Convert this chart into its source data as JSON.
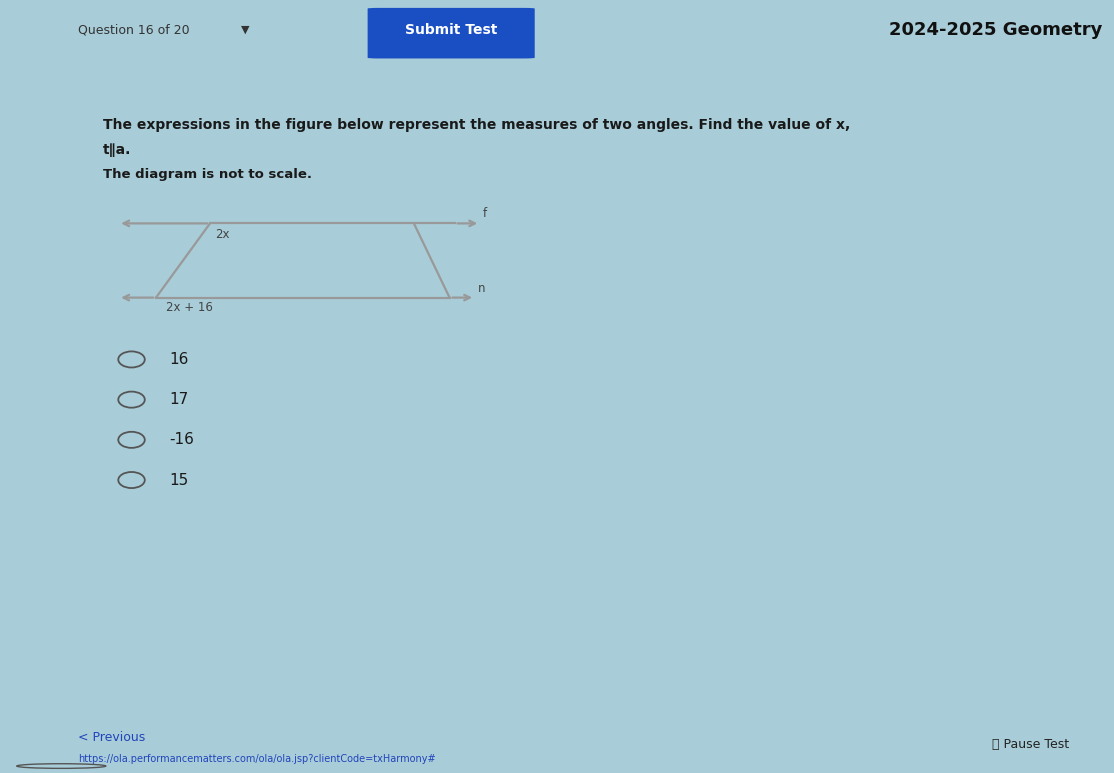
{
  "bg_outer": "#a8cdd8",
  "bg_top_bar": "#d8edf5",
  "bg_content": "#e2eef2",
  "bg_white_box": "#f2f6f8",
  "submit_btn_color": "#1a4fc4",
  "top_right_text": "2024-2025 Geometry",
  "top_nav_text": "Question 16 of 20",
  "question_text": "The expressions in the figure below represent the measures of two angles. Find the value of x,",
  "question_text2": "t∥a.",
  "question_text3": "The diagram is not to scale.",
  "angle1_label": "2x",
  "angle2_label": "2x + 16",
  "label_f": "f",
  "label_n": "n",
  "choices": [
    "16",
    "17",
    "-16",
    "15"
  ],
  "bottom_left_text": "< Previous",
  "bottom_url": "https://ola.performancematters.com/ola/ola.jsp?clientCode=txHarmony#",
  "bottom_right_text": "ⓘ Pause Test",
  "line_color": "#999999",
  "text_color_dark": "#2a2a2a",
  "text_color_q": "#1a1a1a",
  "choice_text_color": "#1a1a1a",
  "circle_color": "#555555",
  "url_color": "#2244bb",
  "link_color": "#2244bb"
}
